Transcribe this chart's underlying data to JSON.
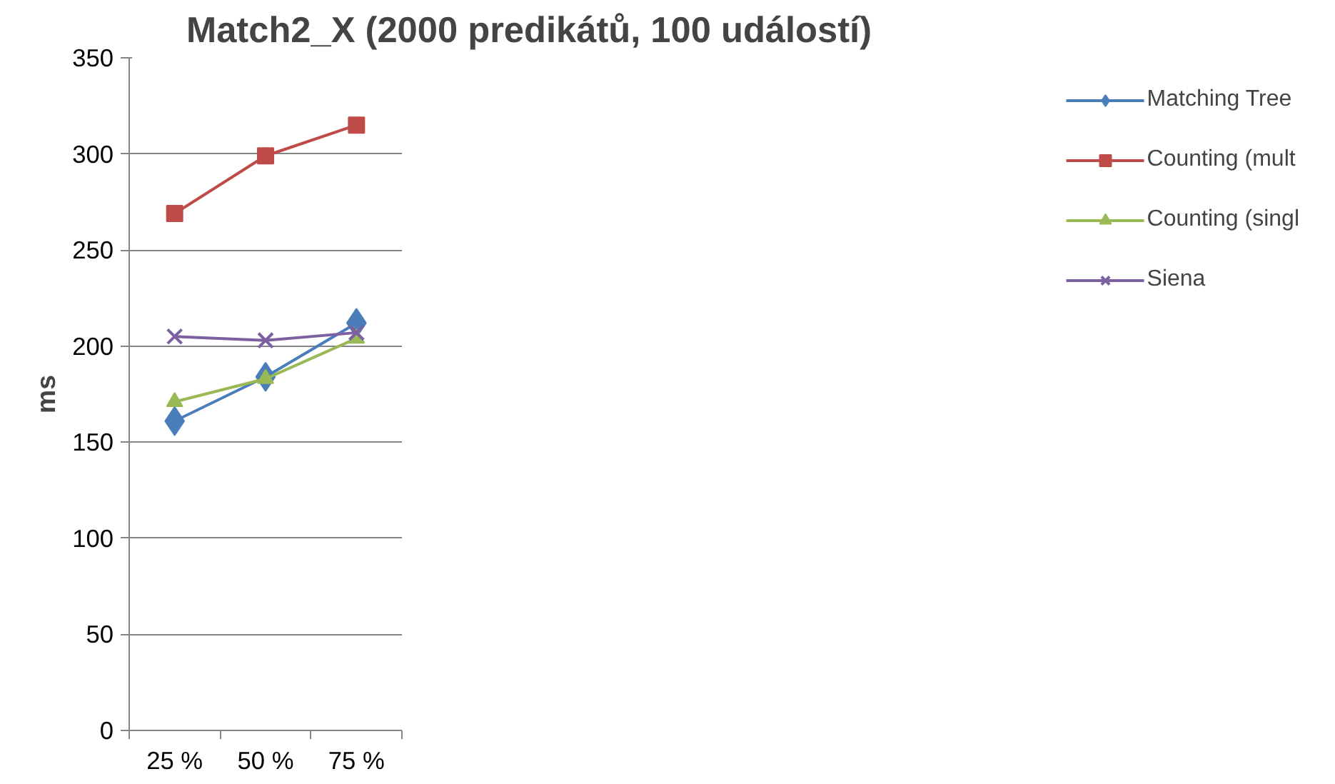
{
  "chart_data": {
    "type": "line",
    "title": "Match2_X (2000 predikátů, 100 událostí)",
    "ylabel": "ms",
    "categories": [
      "25 %",
      "50 %",
      "75 %"
    ],
    "series": [
      {
        "name": "Matching Tree",
        "color": "#4a7ebb",
        "marker": "diamond",
        "values": [
          161,
          184,
          212
        ]
      },
      {
        "name": "Counting (mult",
        "color": "#be4b48",
        "marker": "square",
        "values": [
          269,
          299,
          315
        ]
      },
      {
        "name": "Counting (singl",
        "color": "#98b954",
        "marker": "triangle",
        "values": [
          171,
          183,
          204
        ]
      },
      {
        "name": "Siena",
        "color": "#7d60a0",
        "marker": "x",
        "values": [
          205,
          203,
          207
        ]
      }
    ],
    "ylim": [
      0,
      350
    ],
    "yticks": [
      0,
      50,
      100,
      150,
      200,
      250,
      300,
      350
    ],
    "grid": "y",
    "legend": "right",
    "line_style": "solid"
  }
}
